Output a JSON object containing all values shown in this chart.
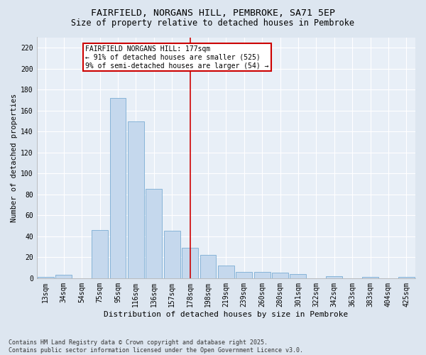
{
  "title": "FAIRFIELD, NORGANS HILL, PEMBROKE, SA71 5EP",
  "subtitle": "Size of property relative to detached houses in Pembroke",
  "xlabel": "Distribution of detached houses by size in Pembroke",
  "ylabel": "Number of detached properties",
  "footer": "Contains HM Land Registry data © Crown copyright and database right 2025.\nContains public sector information licensed under the Open Government Licence v3.0.",
  "categories": [
    "13sqm",
    "34sqm",
    "54sqm",
    "75sqm",
    "95sqm",
    "116sqm",
    "136sqm",
    "157sqm",
    "178sqm",
    "198sqm",
    "219sqm",
    "239sqm",
    "260sqm",
    "280sqm",
    "301sqm",
    "322sqm",
    "342sqm",
    "363sqm",
    "383sqm",
    "404sqm",
    "425sqm"
  ],
  "values": [
    1,
    3,
    0,
    46,
    172,
    150,
    85,
    45,
    29,
    22,
    12,
    6,
    6,
    5,
    4,
    0,
    2,
    0,
    1,
    0,
    1
  ],
  "bar_color": "#c5d8ed",
  "bar_edge_color": "#7aadd4",
  "vline_index": 8,
  "vline_color": "#cc0000",
  "annotation_title": "FAIRFIELD NORGANS HILL: 177sqm",
  "annotation_line1": "← 91% of detached houses are smaller (525)",
  "annotation_line2": "9% of semi-detached houses are larger (54) →",
  "annotation_box_color": "#cc0000",
  "ylim": [
    0,
    230
  ],
  "yticks": [
    0,
    20,
    40,
    60,
    80,
    100,
    120,
    140,
    160,
    180,
    200,
    220
  ],
  "bg_color": "#dde6f0",
  "plot_bg_color": "#e8eff7",
  "grid_color": "#ffffff",
  "title_fontsize": 9.5,
  "subtitle_fontsize": 8.5,
  "ylabel_fontsize": 7.5,
  "xlabel_fontsize": 8,
  "tick_fontsize": 7,
  "footer_fontsize": 6
}
